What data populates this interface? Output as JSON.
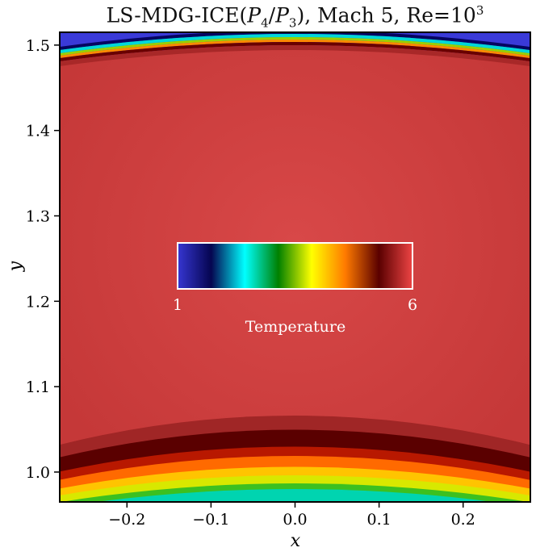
{
  "chart_data": {
    "type": "heatmap",
    "title": {
      "prefix": "LS-MDG-ICE(",
      "p_high": "P",
      "p_high_sub": "4",
      "slash": "/",
      "p_low": "P",
      "p_low_sub": "3",
      "suffix": "), Mach 5, Re=10",
      "re_exp": "3"
    },
    "xlabel": "x",
    "ylabel": "y",
    "xlim": [
      -0.28,
      0.28
    ],
    "ylim": [
      0.965,
      1.515
    ],
    "x_ticks": [
      -0.2,
      -0.1,
      0.0,
      0.1,
      0.2
    ],
    "x_tick_labels": [
      "−0.2",
      "−0.1",
      "0.0",
      "0.1",
      "0.2"
    ],
    "y_ticks": [
      1.0,
      1.1,
      1.2,
      1.3,
      1.4,
      1.5
    ],
    "y_tick_labels": [
      "1.0",
      "1.1",
      "1.2",
      "1.3",
      "1.4",
      "1.5"
    ],
    "field": "Temperature",
    "freestream_temperature": 1,
    "post_shock_temperature": 5.5,
    "wall_temperature": 2.1,
    "shock_y_at_centerline": 1.497,
    "wall_y_at_centerline": 1.0,
    "colorbar": {
      "label": "Temperature",
      "min": 1,
      "max": 6,
      "min_label": "1",
      "max_label": "6",
      "colormap": [
        "#3636d2",
        "#050550",
        "#00ffff",
        "#008000",
        "#ffff00",
        "#ff7a00",
        "#5a0000",
        "#ee4444"
      ]
    },
    "grid": false
  }
}
